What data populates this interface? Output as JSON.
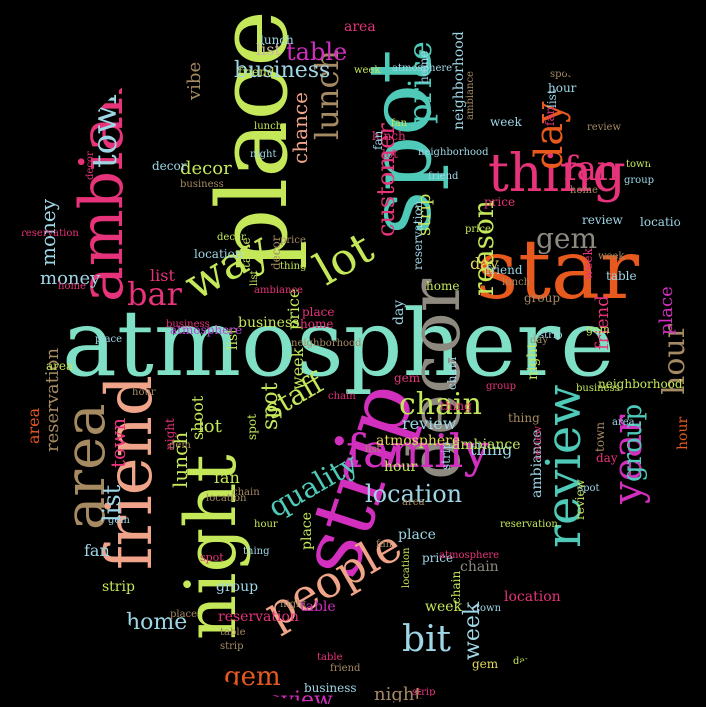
{
  "palette": {
    "teal": "#4fc9b8",
    "mint": "#7fe0c6",
    "lime": "#c4e85a",
    "magenta": "#d22fbf",
    "pink": "#e6337a",
    "orange": "#e8591e",
    "salmon": "#f0a48a",
    "tan": "#a58a62",
    "gray": "#8f8a80",
    "sky": "#9fd6e6",
    "rose": "#e34f8b",
    "yellow": "#e6d95a",
    "beige": "#c9b8a2",
    "violet": "#b84ad6"
  },
  "words": [
    {
      "t": "atmosphere",
      "c": "#7fe0c6"
    },
    {
      "t": "place",
      "c": "#c4e85a"
    },
    {
      "t": "spot",
      "c": "#4fc9b8"
    },
    {
      "t": "star",
      "c": "#e8591e"
    },
    {
      "t": "strip",
      "c": "#d22fbf"
    },
    {
      "t": "night",
      "c": "#c4e85a"
    },
    {
      "t": "decor",
      "c": "#8f8a80"
    },
    {
      "t": "friend",
      "c": "#f0a48a"
    },
    {
      "t": "ambiance",
      "c": "#e6337a"
    },
    {
      "t": "area",
      "c": "#a58a62"
    },
    {
      "t": "review",
      "c": "#4fc9b8"
    },
    {
      "t": "thing",
      "c": "#e6337a"
    },
    {
      "t": "family",
      "c": "#d22fbf"
    },
    {
      "t": "people",
      "c": "#f0a48a"
    },
    {
      "t": "year",
      "c": "#d22fbf"
    },
    {
      "t": "lot",
      "c": "#c4e85a"
    },
    {
      "t": "way",
      "c": "#c4e85a"
    },
    {
      "t": "town",
      "c": "#9fd6e6"
    },
    {
      "t": "bar",
      "c": "#e6337a"
    },
    {
      "t": "bit",
      "c": "#9fd6e6"
    },
    {
      "t": "staff",
      "c": "#c4e85a"
    },
    {
      "t": "chain",
      "c": "#c4e85a"
    },
    {
      "t": "quality",
      "c": "#4fc9b8"
    },
    {
      "t": "location",
      "c": "#9fd6e6"
    },
    {
      "t": "gem",
      "c": "#8f8a80"
    },
    {
      "t": "hour",
      "c": "#a58a62"
    },
    {
      "t": "day",
      "c": "#e8591e"
    },
    {
      "t": "fan",
      "c": "#e6337a"
    },
    {
      "t": "lunch",
      "c": "#a58a62"
    },
    {
      "t": "price",
      "c": "#4fc9b8"
    },
    {
      "t": "customer",
      "c": "#e6337a"
    },
    {
      "t": "reason",
      "c": "#c4e85a"
    },
    {
      "t": "table",
      "c": "#d22fbf"
    },
    {
      "t": "business",
      "c": "#9fd6e6"
    },
    {
      "t": "money",
      "c": "#9fd6e6"
    },
    {
      "t": "chance",
      "c": "#f0a48a"
    },
    {
      "t": "vibe",
      "c": "#a58a62"
    },
    {
      "t": "home",
      "c": "#9fd6e6"
    },
    {
      "t": "list",
      "c": "#9fd6e6"
    },
    {
      "t": "gem",
      "c": "#e8591e"
    },
    {
      "t": "review",
      "c": "#d22fbf"
    },
    {
      "t": "week",
      "c": "#9fd6e6"
    },
    {
      "t": "reservation",
      "c": "#a58a62"
    },
    {
      "t": "group",
      "c": "#4fc9b8"
    },
    {
      "t": "neighborhood",
      "c": "#9fd6e6"
    },
    {
      "t": "decor",
      "c": "#c4e85a"
    },
    {
      "t": "money",
      "c": "#9fd6e6"
    },
    {
      "t": "shoot",
      "c": "#c4e85a"
    },
    {
      "t": "town",
      "c": "#e6337a"
    },
    {
      "t": "strip",
      "c": "#c4e85a"
    },
    {
      "t": "spot",
      "c": "#c4e85a"
    },
    {
      "t": "review",
      "c": "#9fd6e6"
    },
    {
      "t": "lot",
      "c": "#c4e85a"
    },
    {
      "t": "lunch",
      "c": "#c4e85a"
    },
    {
      "t": "fan",
      "c": "#c4e85a"
    },
    {
      "t": "list",
      "c": "#e6337a"
    },
    {
      "t": "price",
      "c": "#c4e85a"
    },
    {
      "t": "place",
      "c": "#d22fbf"
    },
    {
      "t": "night",
      "c": "#a58a62"
    },
    {
      "t": "week",
      "c": "#c4e85a"
    },
    {
      "t": "area",
      "c": "#e8591e"
    },
    {
      "t": "friend",
      "c": "#e6337a"
    },
    {
      "t": "list",
      "c": "#c4e85a"
    },
    {
      "t": "location",
      "c": "#9fd6e6"
    },
    {
      "t": "day",
      "c": "#e6d95a"
    },
    {
      "t": "thing",
      "c": "#9fd6e6"
    },
    {
      "t": "gem",
      "c": "#c4e85a"
    },
    {
      "t": "atmosphere",
      "c": "#b84ad6"
    },
    {
      "t": "ambiance",
      "c": "#9fd6e6"
    },
    {
      "t": "hour",
      "c": "#c4e85a"
    },
    {
      "t": "home",
      "c": "#9fd6e6"
    },
    {
      "t": "business",
      "c": "#c4e85a"
    },
    {
      "t": "table",
      "c": "#d22fbf"
    },
    {
      "t": "group",
      "c": "#9fd6e6"
    },
    {
      "t": "place",
      "c": "#9fd6e6"
    },
    {
      "t": "reservation",
      "c": "#e6337a"
    },
    {
      "t": "list",
      "c": "#c9b8a2"
    },
    {
      "t": "fan",
      "c": "#9fd6e6"
    },
    {
      "t": "decor",
      "c": "#a58a62"
    },
    {
      "t": "area",
      "c": "#e6337a"
    },
    {
      "t": "chain",
      "c": "#8f8a80"
    },
    {
      "t": "place",
      "c": "#c4e85a"
    },
    {
      "t": "strip",
      "c": "#9fd6e6"
    },
    {
      "t": "friend",
      "c": "#e6337a"
    },
    {
      "t": "atmosphere",
      "c": "#e6d95a"
    },
    {
      "t": "review",
      "c": "#c4e85a"
    },
    {
      "t": "week",
      "c": "#c4e85a"
    },
    {
      "t": "spot",
      "c": "#e6337a"
    },
    {
      "t": "location",
      "c": "#e6337a"
    },
    {
      "t": "day",
      "c": "#9fd6e6"
    },
    {
      "t": "hour",
      "c": "#e8591e"
    },
    {
      "t": "night",
      "c": "#c4e85a"
    },
    {
      "t": "ambiance",
      "c": "#c4e85a"
    },
    {
      "t": "gem",
      "c": "#e6337a"
    },
    {
      "t": "chain",
      "c": "#c4e85a"
    },
    {
      "t": "lot",
      "c": "#e6337a"
    },
    {
      "t": "price",
      "c": "#e6337a"
    },
    {
      "t": "thing",
      "c": "#e6337a"
    },
    {
      "t": "home",
      "c": "#e6337a"
    },
    {
      "t": "table",
      "c": "#c4e85a"
    },
    {
      "t": "group",
      "c": "#c4e85a"
    },
    {
      "t": "neighborhood",
      "c": "#c4e85a"
    },
    {
      "t": "strip",
      "c": "#c4e85a"
    },
    {
      "t": "fan",
      "c": "#e6337a"
    },
    {
      "t": "week",
      "c": "#9fd6e6"
    },
    {
      "t": "lunch",
      "c": "#e6337a"
    },
    {
      "t": "business",
      "c": "#9fd6e6"
    },
    {
      "t": "friend",
      "c": "#9fd6e6"
    },
    {
      "t": "area",
      "c": "#c4e85a"
    },
    {
      "t": "decor",
      "c": "#9fd6e6"
    },
    {
      "t": "town",
      "c": "#a58a62"
    },
    {
      "t": "list",
      "c": "#9fd6e6"
    },
    {
      "t": "day",
      "c": "#e6337a"
    },
    {
      "t": "spot",
      "c": "#c4e85a"
    },
    {
      "t": "review",
      "c": "#9fd6e6"
    },
    {
      "t": "chain",
      "c": "#9fd6e6"
    },
    {
      "t": "reservation",
      "c": "#9fd6e6"
    },
    {
      "t": "place",
      "c": "#e6337a"
    },
    {
      "t": "location",
      "c": "#9fd6e6"
    },
    {
      "t": "gem",
      "c": "#e6d95a"
    },
    {
      "t": "hour",
      "c": "#9fd6e6"
    },
    {
      "t": "group",
      "c": "#a58a62"
    },
    {
      "t": "home",
      "c": "#c4e85a"
    },
    {
      "t": "thing",
      "c": "#a58a62"
    },
    {
      "t": "night",
      "c": "#e6337a"
    },
    {
      "t": "table",
      "c": "#9fd6e6"
    },
    {
      "t": "week",
      "c": "#e6337a"
    },
    {
      "t": "friend",
      "c": "#c4e85a"
    },
    {
      "t": "lunch",
      "c": "#9fd6e6"
    },
    {
      "t": "fan",
      "c": "#9fd6e6"
    },
    {
      "t": "price",
      "c": "#9fd6e6"
    },
    {
      "t": "strip",
      "c": "#e6337a"
    },
    {
      "t": "business",
      "c": "#e6337a"
    },
    {
      "t": "ambiance",
      "c": "#a58a62"
    },
    {
      "t": "neighborhood",
      "c": "#9fd6e6"
    },
    {
      "t": "decor",
      "c": "#e6337a"
    },
    {
      "t": "atmosphere",
      "c": "#9fd6e6"
    },
    {
      "t": "chain",
      "c": "#a58a62"
    },
    {
      "t": "list",
      "c": "#c4e85a"
    },
    {
      "t": "area",
      "c": "#9fd6e6"
    },
    {
      "t": "town",
      "c": "#c4e85a"
    },
    {
      "t": "day",
      "c": "#a58a62"
    },
    {
      "t": "spot",
      "c": "#9fd6e6"
    },
    {
      "t": "review",
      "c": "#e6337a"
    },
    {
      "t": "group",
      "c": "#e6337a"
    },
    {
      "t": "reservation",
      "c": "#c4e85a"
    },
    {
      "t": "place",
      "c": "#a58a62"
    },
    {
      "t": "home",
      "c": "#a58a62"
    },
    {
      "t": "hour",
      "c": "#c4e85a"
    },
    {
      "t": "location",
      "c": "#c4e85a"
    },
    {
      "t": "gem",
      "c": "#9fd6e6"
    },
    {
      "t": "night",
      "c": "#9fd6e6"
    },
    {
      "t": "thing",
      "c": "#c4e85a"
    },
    {
      "t": "table",
      "c": "#a58a62"
    },
    {
      "t": "week",
      "c": "#a58a62"
    },
    {
      "t": "fan",
      "c": "#a58a62"
    },
    {
      "t": "friend",
      "c": "#a58a62"
    },
    {
      "t": "price",
      "c": "#a58a62"
    },
    {
      "t": "lunch",
      "c": "#c4e85a"
    },
    {
      "t": "strip",
      "c": "#a58a62"
    },
    {
      "t": "business",
      "c": "#a58a62"
    },
    {
      "t": "decor",
      "c": "#c4e85a"
    },
    {
      "t": "ambiance",
      "c": "#e6337a"
    },
    {
      "t": "neighborhood",
      "c": "#a58a62"
    },
    {
      "t": "chain",
      "c": "#e6337a"
    },
    {
      "t": "list",
      "c": "#a58a62"
    },
    {
      "t": "area",
      "c": "#a58a62"
    },
    {
      "t": "atmosphere",
      "c": "#e6337a"
    },
    {
      "t": "town",
      "c": "#9fd6e6"
    },
    {
      "t": "day",
      "c": "#c4e85a"
    },
    {
      "t": "spot",
      "c": "#a58a62"
    },
    {
      "t": "review",
      "c": "#a58a62"
    },
    {
      "t": "group",
      "c": "#9fd6e6"
    },
    {
      "t": "reservation",
      "c": "#e6337a"
    },
    {
      "t": "home",
      "c": "#e6337a"
    },
    {
      "t": "place",
      "c": "#9fd6e6"
    },
    {
      "t": "hour",
      "c": "#a58a62"
    },
    {
      "t": "gem",
      "c": "#a58a62"
    },
    {
      "t": "location",
      "c": "#a58a62"
    },
    {
      "t": "thing",
      "c": "#9fd6e6"
    },
    {
      "t": "night",
      "c": "#a58a62"
    },
    {
      "t": "table",
      "c": "#e6337a"
    },
    {
      "t": "week",
      "c": "#c4e85a"
    },
    {
      "t": "fan",
      "c": "#c4e85a"
    },
    {
      "t": "friend",
      "c": "#9fd6e6"
    },
    {
      "t": "price",
      "c": "#c4e85a"
    },
    {
      "t": "lunch",
      "c": "#a58a62"
    },
    {
      "t": "strip",
      "c": "#9fd6e6"
    },
    {
      "t": "business",
      "c": "#c4e85a"
    }
  ]
}
